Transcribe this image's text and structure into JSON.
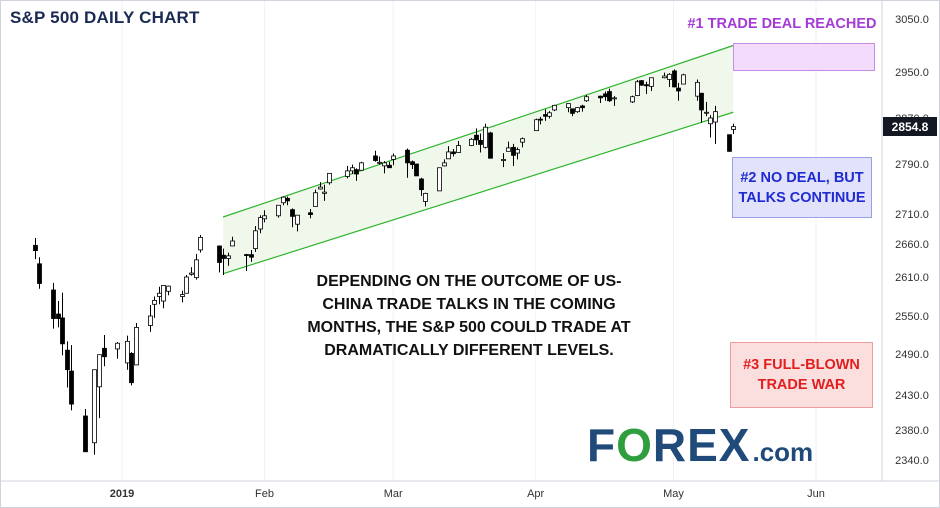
{
  "title": "S&P 500 DAILY CHART",
  "annotation": {
    "line1": "DEPENDING ON THE OUTCOME OF US-",
    "line2": "CHINA TRADE TALKS IN THE COMING",
    "line3": "MONTHS, THE S&P 500 COULD TRADE AT",
    "line4": "DRAMATICALLY DIFFERENT LEVELS."
  },
  "scenarios": {
    "s1": "#1 TRADE DEAL REACHED",
    "s2_line1": "#2 NO DEAL, BUT",
    "s2_line2": "TALKS CONTINUE",
    "s3_line1": "#3 FULL-BLOWN",
    "s3_line2": "TRADE WAR"
  },
  "logo": {
    "prefix": "F",
    "o": "O",
    "suffix": "REX",
    "domain": ".com"
  },
  "colors": {
    "brand_blue": "#1f4a79",
    "brand_green": "#2f9e3e",
    "channel_line": "#2db52d",
    "channel_fill": "#f0f8ec",
    "candle_down": "#000000",
    "candle_up": "#ffffff"
  },
  "chart_data": {
    "type": "candlestick",
    "title": "S&P 500 DAILY CHART",
    "current_price": "2854.8",
    "x_ticks": [
      "2019",
      "Feb",
      "Mar",
      "Apr",
      "May",
      "Jun"
    ],
    "y_ticks": [
      "3050.0",
      "2950.0",
      "2870.0",
      "2790.0",
      "2710.0",
      "2660.0",
      "2610.0",
      "2550.0",
      "2490.0",
      "2430.0",
      "2380.0",
      "2340.0"
    ],
    "channel": {
      "upper": [
        [
          "2019-01-23",
          2705
        ],
        [
          "2019-05-14",
          3000
        ]
      ],
      "lower": [
        [
          "2019-01-23",
          2615
        ],
        [
          "2019-05-14",
          2880
        ]
      ]
    },
    "candles": [
      [
        "2018-12-13",
        2658,
        2670,
        2637,
        2650
      ],
      [
        "2018-12-14",
        2630,
        2640,
        2592,
        2600
      ],
      [
        "2018-12-17",
        2590,
        2601,
        2530,
        2546
      ],
      [
        "2018-12-18",
        2553,
        2573,
        2532,
        2546
      ],
      [
        "2018-12-19",
        2547,
        2586,
        2488,
        2506
      ],
      [
        "2018-12-20",
        2496,
        2510,
        2441,
        2467
      ],
      [
        "2018-12-21",
        2465,
        2504,
        2408,
        2417
      ],
      [
        "2018-12-24",
        2400,
        2410,
        2351,
        2351
      ],
      [
        "2018-12-26",
        2363,
        2467,
        2347,
        2467
      ],
      [
        "2018-12-27",
        2442,
        2489,
        2397,
        2489
      ],
      [
        "2018-12-28",
        2499,
        2520,
        2472,
        2486
      ],
      [
        "2018-12-31",
        2498,
        2509,
        2483,
        2507
      ],
      [
        "2019-01-02",
        2477,
        2519,
        2467,
        2510
      ],
      [
        "2019-01-03",
        2491,
        2493,
        2444,
        2448
      ],
      [
        "2019-01-04",
        2474,
        2539,
        2474,
        2532
      ],
      [
        "2019-01-07",
        2535,
        2567,
        2525,
        2550
      ],
      [
        "2019-01-08",
        2568,
        2580,
        2547,
        2574
      ],
      [
        "2019-01-09",
        2580,
        2595,
        2568,
        2585
      ],
      [
        "2019-01-10",
        2573,
        2597,
        2562,
        2597
      ],
      [
        "2019-01-11",
        2588,
        2597,
        2582,
        2596
      ],
      [
        "2019-01-14",
        2580,
        2589,
        2571,
        2583
      ],
      [
        "2019-01-15",
        2585,
        2613,
        2585,
        2610
      ],
      [
        "2019-01-16",
        2614,
        2625,
        2612,
        2616
      ],
      [
        "2019-01-17",
        2609,
        2645,
        2606,
        2636
      ],
      [
        "2019-01-18",
        2651,
        2675,
        2647,
        2671
      ],
      [
        "2019-01-22",
        2657,
        2658,
        2617,
        2632
      ],
      [
        "2019-01-23",
        2643,
        2653,
        2613,
        2638
      ],
      [
        "2019-01-24",
        2638,
        2647,
        2627,
        2642
      ],
      [
        "2019-01-25",
        2657,
        2672,
        2657,
        2665
      ],
      [
        "2019-01-28",
        2644,
        2645,
        2619,
        2643
      ],
      [
        "2019-01-29",
        2644,
        2651,
        2633,
        2640
      ],
      [
        "2019-01-30",
        2653,
        2690,
        2648,
        2682
      ],
      [
        "2019-01-31",
        2685,
        2708,
        2678,
        2704
      ],
      [
        "2019-02-01",
        2702,
        2716,
        2696,
        2707
      ],
      [
        "2019-02-04",
        2707,
        2724,
        2704,
        2724
      ],
      [
        "2019-02-05",
        2728,
        2738,
        2724,
        2737
      ],
      [
        "2019-02-06",
        2735,
        2738,
        2724,
        2731
      ],
      [
        "2019-02-07",
        2717,
        2719,
        2688,
        2706
      ],
      [
        "2019-02-08",
        2693,
        2708,
        2681,
        2708
      ],
      [
        "2019-02-11",
        2712,
        2718,
        2703,
        2709
      ],
      [
        "2019-02-12",
        2722,
        2749,
        2722,
        2744
      ],
      [
        "2019-02-13",
        2750,
        2761,
        2749,
        2753
      ],
      [
        "2019-02-14",
        2743,
        2757,
        2731,
        2745
      ],
      [
        "2019-02-15",
        2760,
        2775,
        2757,
        2775
      ],
      [
        "2019-02-19",
        2770,
        2787,
        2767,
        2779
      ],
      [
        "2019-02-20",
        2779,
        2789,
        2774,
        2784
      ],
      [
        "2019-02-21",
        2781,
        2783,
        2763,
        2774
      ],
      [
        "2019-02-22",
        2780,
        2794,
        2780,
        2792
      ],
      [
        "2019-02-25",
        2804,
        2813,
        2794,
        2796
      ],
      [
        "2019-02-26",
        2792,
        2803,
        2789,
        2793
      ],
      [
        "2019-02-27",
        2787,
        2795,
        2775,
        2792
      ],
      [
        "2019-02-28",
        2788,
        2794,
        2784,
        2784
      ],
      [
        "2019-03-01",
        2798,
        2808,
        2788,
        2804
      ],
      [
        "2019-03-04",
        2814,
        2817,
        2768,
        2792
      ],
      [
        "2019-03-05",
        2794,
        2796,
        2782,
        2789
      ],
      [
        "2019-03-06",
        2790,
        2790,
        2772,
        2771
      ],
      [
        "2019-03-07",
        2766,
        2768,
        2739,
        2749
      ],
      [
        "2019-03-08",
        2730,
        2744,
        2722,
        2743
      ],
      [
        "2019-03-11",
        2747,
        2784,
        2747,
        2784
      ],
      [
        "2019-03-12",
        2787,
        2798,
        2786,
        2792
      ],
      [
        "2019-03-13",
        2799,
        2821,
        2799,
        2811
      ],
      [
        "2019-03-14",
        2811,
        2816,
        2803,
        2808
      ],
      [
        "2019-03-15",
        2810,
        2830,
        2810,
        2822
      ],
      [
        "2019-03-18",
        2822,
        2835,
        2821,
        2833
      ],
      [
        "2019-03-19",
        2840,
        2852,
        2823,
        2832
      ],
      [
        "2019-03-20",
        2831,
        2843,
        2810,
        2824
      ],
      [
        "2019-03-21",
        2819,
        2860,
        2817,
        2854
      ],
      [
        "2019-03-22",
        2844,
        2846,
        2800,
        2800
      ],
      [
        "2019-03-25",
        2796,
        2809,
        2785,
        2798
      ],
      [
        "2019-03-26",
        2812,
        2829,
        2812,
        2818
      ],
      [
        "2019-03-27",
        2819,
        2825,
        2787,
        2805
      ],
      [
        "2019-03-28",
        2809,
        2819,
        2798,
        2815
      ],
      [
        "2019-03-29",
        2828,
        2836,
        2819,
        2834
      ],
      [
        "2019-04-01",
        2848,
        2869,
        2848,
        2867
      ],
      [
        "2019-04-02",
        2868,
        2872,
        2859,
        2867
      ],
      [
        "2019-04-03",
        2876,
        2885,
        2865,
        2873
      ],
      [
        "2019-04-04",
        2873,
        2882,
        2869,
        2879
      ],
      [
        "2019-04-05",
        2884,
        2893,
        2882,
        2892
      ],
      [
        "2019-04-08",
        2888,
        2895,
        2880,
        2895
      ],
      [
        "2019-04-09",
        2886,
        2886,
        2873,
        2878
      ],
      [
        "2019-04-10",
        2881,
        2889,
        2879,
        2888
      ],
      [
        "2019-04-11",
        2891,
        2893,
        2881,
        2888
      ],
      [
        "2019-04-12",
        2900,
        2910,
        2898,
        2907
      ],
      [
        "2019-04-15",
        2908,
        2909,
        2896,
        2905
      ],
      [
        "2019-04-16",
        2912,
        2916,
        2900,
        2907
      ],
      [
        "2019-04-17",
        2916,
        2921,
        2898,
        2900
      ],
      [
        "2019-04-18",
        2904,
        2908,
        2891,
        2905
      ],
      [
        "2019-04-22",
        2898,
        2909,
        2896,
        2907
      ],
      [
        "2019-04-23",
        2909,
        2936,
        2908,
        2933
      ],
      [
        "2019-04-24",
        2935,
        2936,
        2926,
        2927
      ],
      [
        "2019-04-25",
        2928,
        2933,
        2912,
        2926
      ],
      [
        "2019-04-26",
        2925,
        2940,
        2917,
        2940
      ],
      [
        "2019-04-29",
        2940,
        2949,
        2939,
        2943
      ],
      [
        "2019-04-30",
        2937,
        2948,
        2924,
        2946
      ],
      [
        "2019-05-01",
        2952,
        2955,
        2923,
        2924
      ],
      [
        "2019-05-02",
        2922,
        2931,
        2900,
        2917
      ],
      [
        "2019-05-03",
        2929,
        2947,
        2929,
        2945
      ],
      [
        "2019-05-06",
        2908,
        2937,
        2900,
        2932
      ],
      [
        "2019-05-07",
        2913,
        2914,
        2862,
        2884
      ],
      [
        "2019-05-08",
        2880,
        2898,
        2873,
        2880
      ],
      [
        "2019-05-09",
        2860,
        2875,
        2836,
        2870
      ],
      [
        "2019-05-10",
        2863,
        2891,
        2825,
        2881
      ],
      [
        "2019-05-13",
        2841,
        2841,
        2811,
        2812
      ],
      [
        "2019-05-14",
        2850,
        2860,
        2842,
        2855
      ]
    ]
  }
}
